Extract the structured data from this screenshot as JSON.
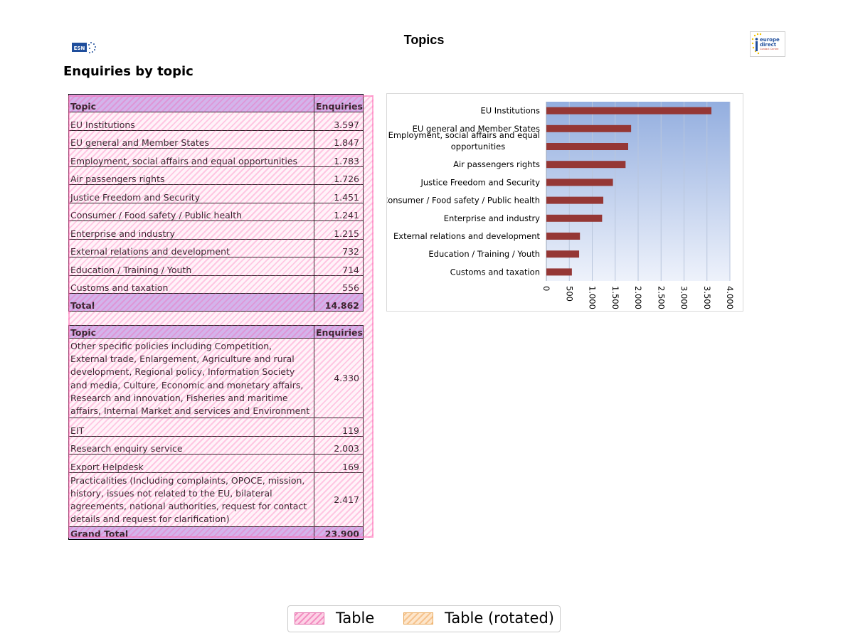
{
  "page": {
    "title": "Topics",
    "section_heading": "Enquiries by topic"
  },
  "logos": {
    "left": "ESN",
    "right": [
      "europe",
      "direct",
      "Contact Centre"
    ]
  },
  "table1": {
    "headers": [
      "Topic",
      "Enquiries"
    ],
    "rows": [
      {
        "topic": "EU Institutions",
        "enquiries": "3.597"
      },
      {
        "topic": "EU general and Member States",
        "enquiries": "1.847"
      },
      {
        "topic": "Employment, social affairs and equal opportunities",
        "enquiries": "1.783"
      },
      {
        "topic": "Air passengers rights",
        "enquiries": "1.726"
      },
      {
        "topic": "Justice Freedom and Security",
        "enquiries": "1.451"
      },
      {
        "topic": "Consumer / Food safety / Public health",
        "enquiries": "1.241"
      },
      {
        "topic": "Enterprise and industry",
        "enquiries": "1.215"
      },
      {
        "topic": "External relations and development",
        "enquiries": "732"
      },
      {
        "topic": "Education / Training / Youth",
        "enquiries": "714"
      },
      {
        "topic": "Customs and taxation",
        "enquiries": "556"
      }
    ],
    "total": {
      "label": "Total",
      "value": "14.862"
    }
  },
  "table2": {
    "headers": [
      "Topic",
      "Enquiries"
    ],
    "rows": [
      {
        "topic": "Other specific policies including Competition, External trade, Enlargement, Agriculture and rural development, Regional policy, Information Society and media, Culture, Economic and monetary affairs, Research and innovation, Fisheries and maritime affairs, Internal Market and services and Environment",
        "enquiries": "4.330"
      },
      {
        "topic": "EIT",
        "enquiries": "119"
      },
      {
        "topic": "Research enquiry service",
        "enquiries": "2.003"
      },
      {
        "topic": "Export Helpdesk",
        "enquiries": "169"
      },
      {
        "topic": "Practicalities (Including complaints, OPOCE, mission, history, issues not related to the EU, bilateral agreements, national authorities, request for contact details and request for clarification)",
        "enquiries": "2.417"
      }
    ],
    "total": {
      "label": "Grand Total",
      "value": "23.900"
    }
  },
  "chart_data": {
    "type": "bar",
    "orientation": "horizontal",
    "categories": [
      "EU Institutions",
      "EU general and Member States",
      "Employment, social affairs and equal opportunities",
      "Air passengers rights",
      "Justice Freedom and Security",
      "Consumer / Food safety / Public health",
      "Enterprise and industry",
      "External relations and development",
      "Education / Training / Youth",
      "Customs and taxation"
    ],
    "category_lines": [
      [
        "EU Institutions"
      ],
      [
        "EU general and Member States"
      ],
      [
        "Employment, social affairs and equal",
        "opportunities"
      ],
      [
        "Air passengers rights"
      ],
      [
        "Justice Freedom and Security"
      ],
      [
        "Consumer / Food safety / Public health"
      ],
      [
        "Enterprise and industry"
      ],
      [
        "External relations and development"
      ],
      [
        "Education / Training / Youth"
      ],
      [
        "Customs and taxation"
      ]
    ],
    "values": [
      3597,
      1847,
      1783,
      1726,
      1451,
      1241,
      1215,
      732,
      714,
      556
    ],
    "title": "",
    "xlabel": "",
    "ylabel": "",
    "xlim": [
      0,
      4000
    ],
    "ticks": [
      0,
      500,
      1000,
      1500,
      2000,
      2500,
      3000,
      3500,
      4000
    ],
    "tick_labels": [
      "0",
      "500",
      "1.000",
      "1.500",
      "2.000",
      "2.500",
      "3.000",
      "3.500",
      "4.000"
    ],
    "tick_label_orientation": "vertical",
    "grid": true,
    "legend": "none",
    "bar_color": "#953735",
    "plot_background": "gradient light blue"
  },
  "legend": {
    "items": [
      {
        "label": "Table",
        "color": "#f48fc2"
      },
      {
        "label": "Table (rotated)",
        "color": "#f6c38e"
      }
    ]
  }
}
